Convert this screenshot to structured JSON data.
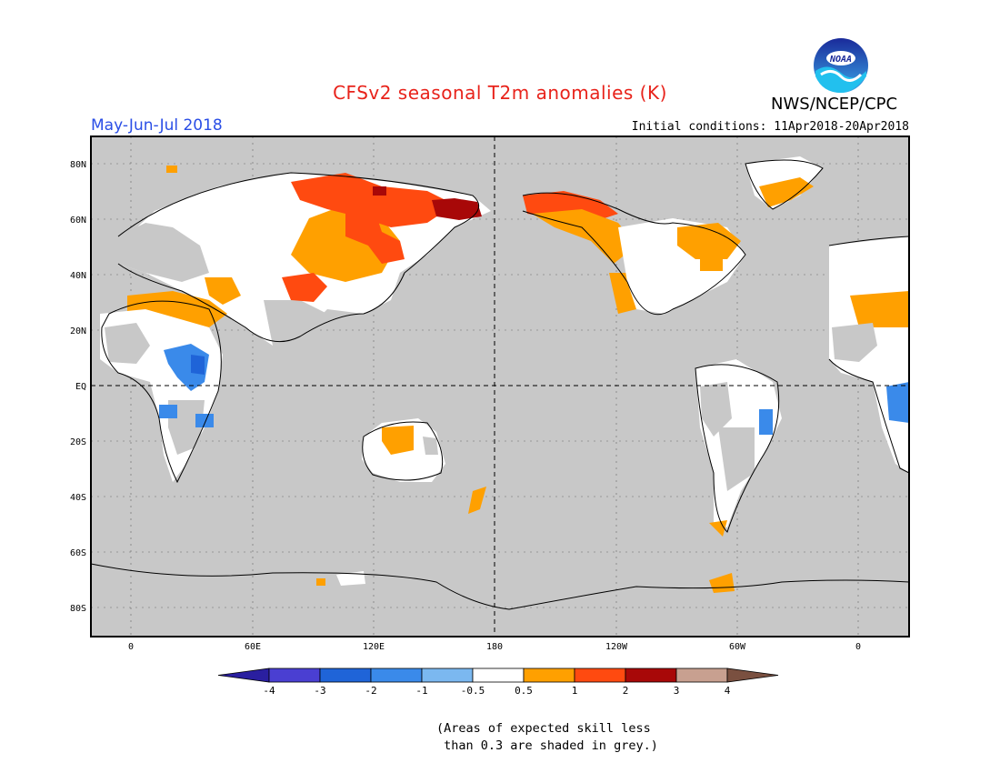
{
  "title": "CFSv2 seasonal T2m anomalies (K)",
  "period": "May-Jun-Jul 2018",
  "org": "NWS/NCEP/CPC",
  "logo_text": "NOAA",
  "initial_conditions": "Initial conditions: 11Apr2018-20Apr2018",
  "axes": {
    "lat_labels": [
      "80N",
      "60N",
      "40N",
      "20N",
      "EQ",
      "20S",
      "40S",
      "60S",
      "80S"
    ],
    "lon_labels": [
      "0",
      "60E",
      "120E",
      "180",
      "120W",
      "60W",
      "0"
    ]
  },
  "colorbar": {
    "labels": [
      "-4",
      "-3",
      "-2",
      "-1",
      "-0.5",
      "0.5",
      "1",
      "2",
      "3",
      "4"
    ],
    "colors": [
      "#2a1fa0",
      "#4a3fd2",
      "#1f64d8",
      "#3a8aea",
      "#7bb8f0",
      "#ffffff",
      "#ffa000",
      "#ff4a10",
      "#a80808",
      "#c8a090",
      "#7a5040"
    ],
    "grey": "#c8c8c8"
  },
  "footnote": "(Areas of expected skill less\n than 0.3 are shaded in grey.)"
}
